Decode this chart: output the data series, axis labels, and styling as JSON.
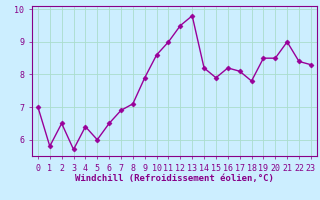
{
  "x": [
    0,
    1,
    2,
    3,
    4,
    5,
    6,
    7,
    8,
    9,
    10,
    11,
    12,
    13,
    14,
    15,
    16,
    17,
    18,
    19,
    20,
    21,
    22,
    23
  ],
  "y": [
    7.0,
    5.8,
    6.5,
    5.7,
    6.4,
    6.0,
    6.5,
    6.9,
    7.1,
    7.9,
    8.6,
    9.0,
    9.5,
    9.8,
    8.2,
    7.9,
    8.2,
    8.1,
    7.8,
    8.5,
    8.5,
    9.0,
    8.4,
    8.3
  ],
  "line_color": "#990099",
  "marker": "D",
  "markersize": 2.5,
  "linewidth": 1.0,
  "xlabel": "Windchill (Refroidissement éolien,°C)",
  "xlim": [
    -0.5,
    23.5
  ],
  "ylim": [
    5.5,
    10.1
  ],
  "yticks": [
    6,
    7,
    8,
    9,
    10
  ],
  "xticks": [
    0,
    1,
    2,
    3,
    4,
    5,
    6,
    7,
    8,
    9,
    10,
    11,
    12,
    13,
    14,
    15,
    16,
    17,
    18,
    19,
    20,
    21,
    22,
    23
  ],
  "background_color": "#cceeff",
  "grid_color": "#aaddcc",
  "tick_color": "#880088",
  "label_color": "#880088",
  "spine_color": "#880088",
  "xlabel_fontsize": 6.5,
  "tick_fontsize": 6.0
}
